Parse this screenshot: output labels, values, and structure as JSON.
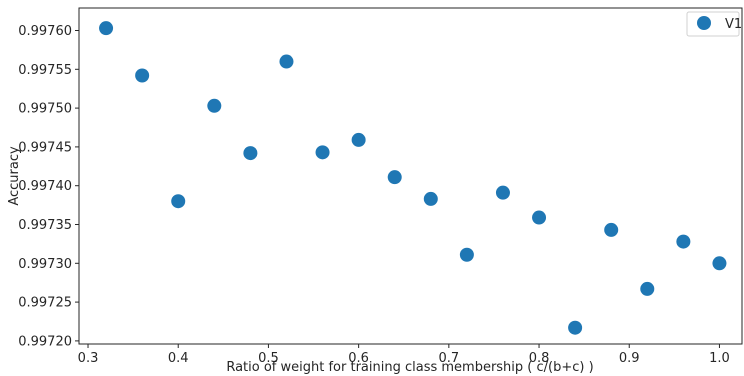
{
  "chart_data": {
    "type": "scatter",
    "xlabel": "Ratio of weight for training class membership ( c/(b+c) )",
    "ylabel": "Accuracy",
    "xlim": [
      0.29,
      1.025
    ],
    "ylim": [
      0.997196,
      0.997629
    ],
    "x_ticks": [
      "0.3",
      "0.4",
      "0.5",
      "0.6",
      "0.7",
      "0.8",
      "0.9",
      "1.0"
    ],
    "x_tick_values": [
      0.3,
      0.4,
      0.5,
      0.6,
      0.7,
      0.8,
      0.9,
      1.0
    ],
    "y_ticks": [
      "0.99720",
      "0.99725",
      "0.99730",
      "0.99735",
      "0.99740",
      "0.99745",
      "0.99750",
      "0.99755",
      "0.99760"
    ],
    "y_tick_values": [
      0.9972,
      0.99725,
      0.9973,
      0.99735,
      0.9974,
      0.99745,
      0.9975,
      0.99755,
      0.9976
    ],
    "legend_position": "top-right",
    "grid": false,
    "series": [
      {
        "name": "V1",
        "color": "#1f77b4",
        "x": [
          0.32,
          0.36,
          0.4,
          0.44,
          0.48,
          0.52,
          0.56,
          0.6,
          0.64,
          0.68,
          0.72,
          0.76,
          0.8,
          0.84,
          0.88,
          0.92,
          0.96,
          1.0
        ],
        "y": [
          0.997603,
          0.997542,
          0.99738,
          0.997503,
          0.997442,
          0.99756,
          0.997443,
          0.997459,
          0.997411,
          0.997383,
          0.997311,
          0.997391,
          0.997359,
          0.997217,
          0.997343,
          0.997267,
          0.997328,
          0.9973
        ]
      }
    ]
  }
}
